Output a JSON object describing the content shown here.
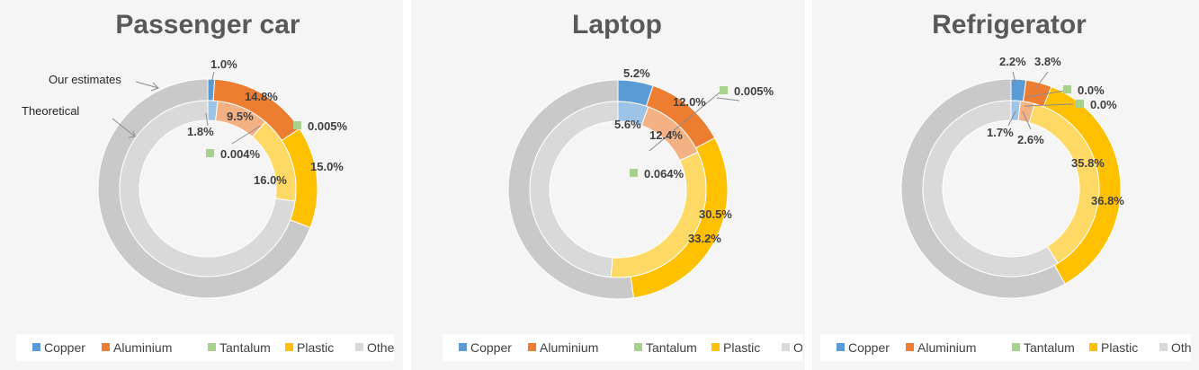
{
  "colors": {
    "copper_outer": "#5b9bd5",
    "copper_inner": "#9dc3e6",
    "aluminium_outer": "#ed7d31",
    "aluminium_inner": "#f4b183",
    "tantalum": "#a9d18e",
    "plastic_outer": "#ffc000",
    "plastic_inner": "#ffd966",
    "other_outer": "#c9c9c9",
    "other_inner": "#d9d9d9"
  },
  "legend": [
    "Copper",
    "Aluminium",
    "Tantalum",
    "Plastic",
    "Other"
  ],
  "annotations": {
    "outer": "Our estimates",
    "inner": "Theoretical"
  },
  "chart_data": [
    {
      "type": "pie",
      "title": "Passenger car",
      "categories": [
        "Copper",
        "Aluminium",
        "Tantalum",
        "Plastic",
        "Other"
      ],
      "series": [
        {
          "name": "Our estimates",
          "values": [
            1.0,
            14.8,
            0.005,
            15.0,
            69.195
          ],
          "labels": [
            "1.0%",
            "14.8%",
            "0.005%",
            "15.0%",
            ""
          ]
        },
        {
          "name": "Theoretical",
          "values": [
            1.8,
            9.5,
            0.004,
            16.0,
            72.696
          ],
          "labels": [
            "1.8%",
            "9.5%",
            "0.004%",
            "16.0%",
            ""
          ]
        }
      ]
    },
    {
      "type": "pie",
      "title": "Laptop",
      "categories": [
        "Copper",
        "Aluminium",
        "Tantalum",
        "Plastic",
        "Other"
      ],
      "series": [
        {
          "values": [
            5.2,
            12.0,
            0.005,
            30.5,
            52.295
          ],
          "labels": [
            "5.2%",
            "12.0%",
            "0.005%",
            "30.5%",
            ""
          ]
        },
        {
          "values": [
            5.6,
            12.4,
            0.064,
            33.2,
            48.736
          ],
          "labels": [
            "5.6%",
            "12.4%",
            "0.064%",
            "33.2%",
            ""
          ]
        }
      ]
    },
    {
      "type": "pie",
      "title": "Refrigerator",
      "categories": [
        "Copper",
        "Aluminium",
        "Tantalum",
        "Plastic",
        "Other"
      ],
      "series": [
        {
          "values": [
            2.2,
            3.8,
            0.0,
            35.8,
            58.2
          ],
          "labels": [
            "2.2%",
            "3.8%",
            "0.0%",
            "35.8%",
            ""
          ]
        },
        {
          "values": [
            1.7,
            2.6,
            0.0,
            36.8,
            58.9
          ],
          "labels": [
            "1.7%",
            "2.6%",
            "0.0%",
            "36.8%",
            ""
          ]
        }
      ]
    }
  ]
}
